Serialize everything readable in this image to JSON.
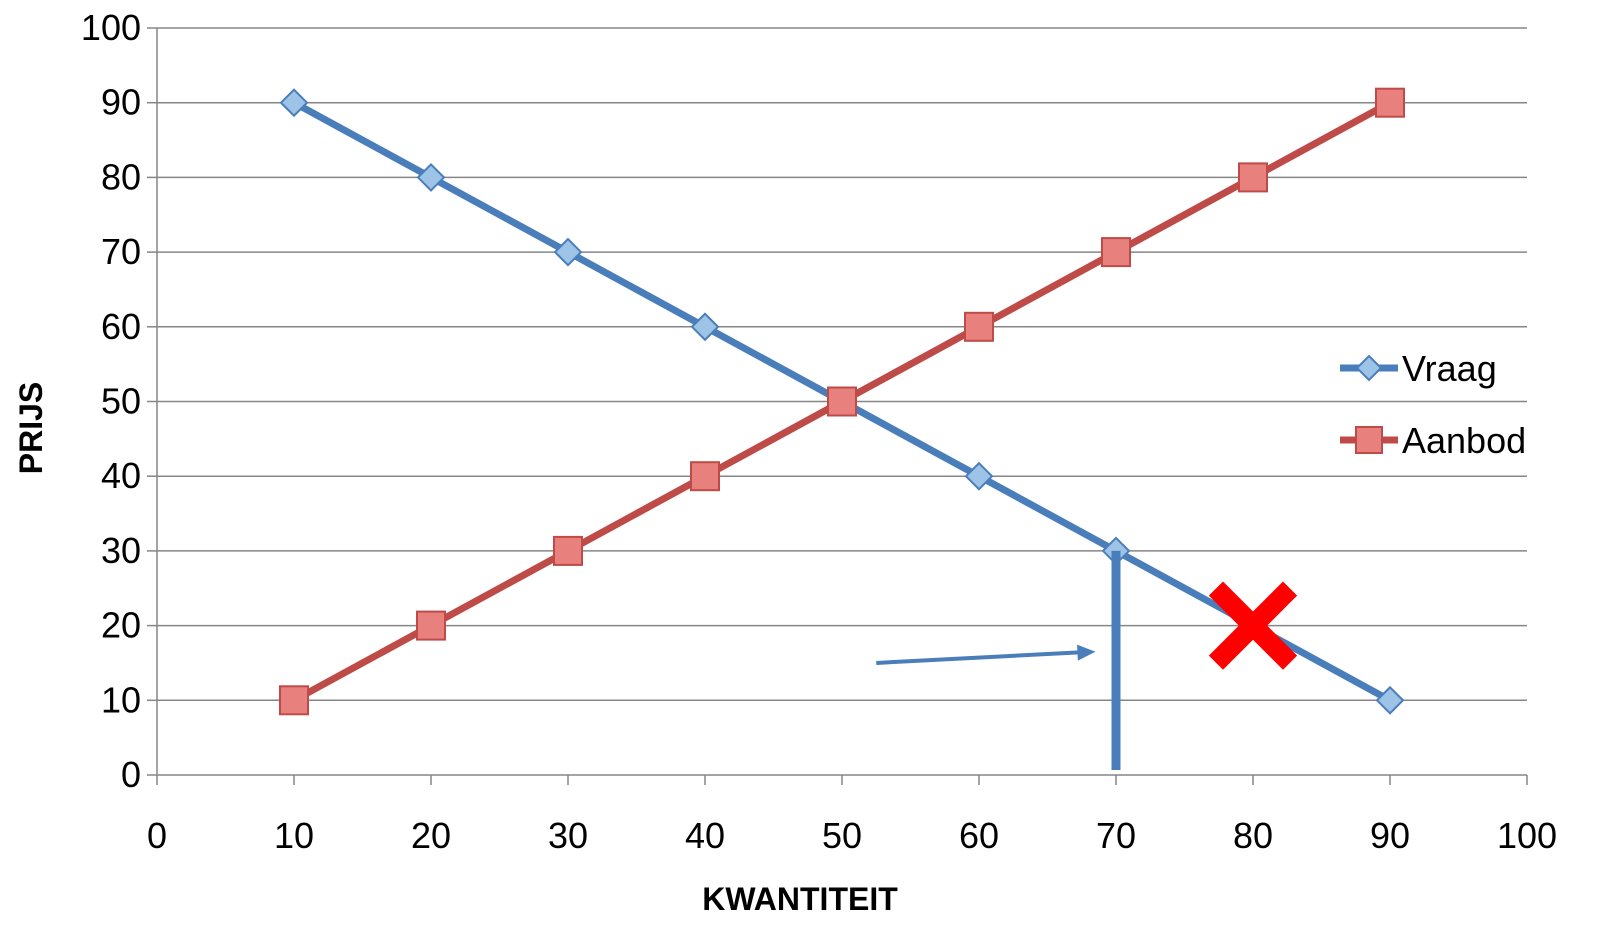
{
  "chart_data": {
    "type": "line",
    "title": "",
    "xlabel": "KWANTITEIT",
    "ylabel": "PRIJS",
    "xlim": [
      0,
      100
    ],
    "ylim": [
      0,
      100
    ],
    "x_ticks": [
      0,
      10,
      20,
      30,
      40,
      50,
      60,
      70,
      80,
      90,
      100
    ],
    "y_ticks": [
      0,
      10,
      20,
      30,
      40,
      50,
      60,
      70,
      80,
      90,
      100
    ],
    "grid": "horizontal",
    "legend_position": "right",
    "series": [
      {
        "name": "Vraag",
        "color": "#4A7EBB",
        "marker": "diamond",
        "x": [
          10,
          20,
          30,
          40,
          50,
          60,
          70,
          80,
          90
        ],
        "y": [
          90,
          80,
          70,
          60,
          50,
          40,
          30,
          20,
          10
        ]
      },
      {
        "name": "Aanbod",
        "color": "#BE4B48",
        "marker": "square",
        "x": [
          10,
          20,
          30,
          40,
          50,
          60,
          70,
          80,
          90
        ],
        "y": [
          10,
          20,
          30,
          40,
          50,
          60,
          70,
          80,
          90
        ]
      }
    ],
    "annotations": [
      {
        "type": "vertical-line",
        "x": 70,
        "y_from": 0,
        "y_to": 30,
        "color": "#4A7EBB"
      },
      {
        "type": "arrow",
        "from": [
          52.5,
          15
        ],
        "to": [
          68.5,
          16.5
        ],
        "color": "#4A7EBB"
      },
      {
        "type": "cross",
        "x": 80,
        "y": 20,
        "color": "#FF0000"
      }
    ]
  }
}
